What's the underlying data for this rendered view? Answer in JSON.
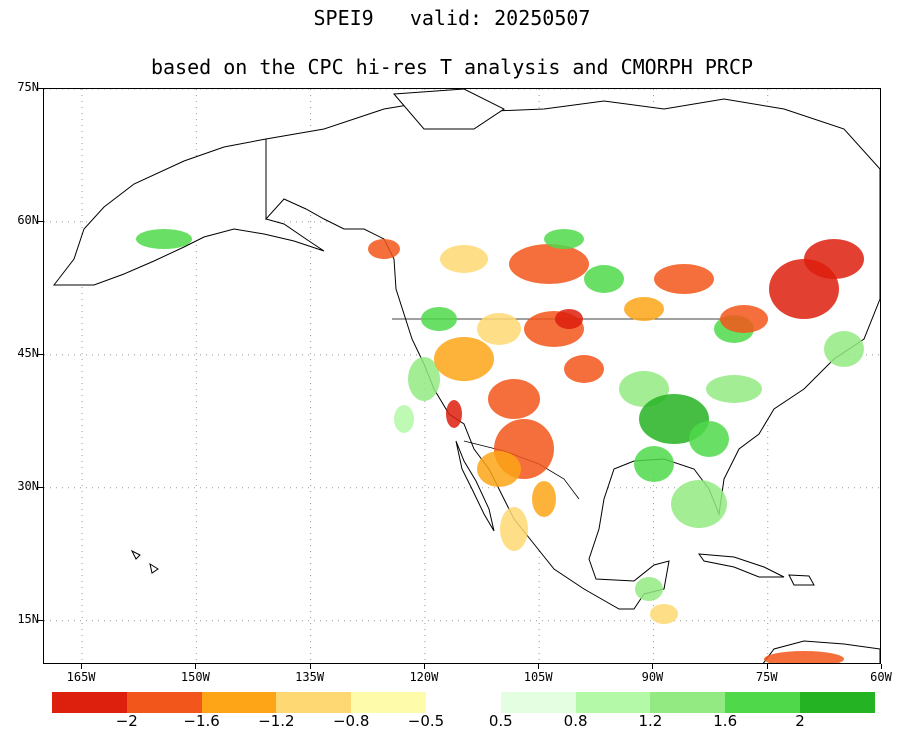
{
  "title_line1": "SPEI9   valid: 20250507",
  "title_line2": "based on the CPC hi-res T analysis and CMORPH PRCP",
  "lat_labels": [
    "75N",
    "60N",
    "45N",
    "30N",
    "15N"
  ],
  "lon_labels": [
    "165W",
    "150W",
    "135W",
    "120W",
    "105W",
    "90W",
    "75W",
    "60W"
  ],
  "legend": {
    "dry_colors": [
      "#dd1f0d",
      "#f3561a",
      "#fda517",
      "#fed872",
      "#fefcaa"
    ],
    "wet_colors": [
      "#e3fee0",
      "#b4f9a8",
      "#93ea82",
      "#4fd94a",
      "#24b322"
    ],
    "labels": [
      "−2",
      "−1.6",
      "−1.2",
      "−0.8",
      "−0.5",
      "0.5",
      "0.8",
      "1.2",
      "1.6",
      "2"
    ]
  },
  "map_extent": {
    "lon": [
      -170,
      -60
    ],
    "lat": [
      10,
      75
    ]
  }
}
